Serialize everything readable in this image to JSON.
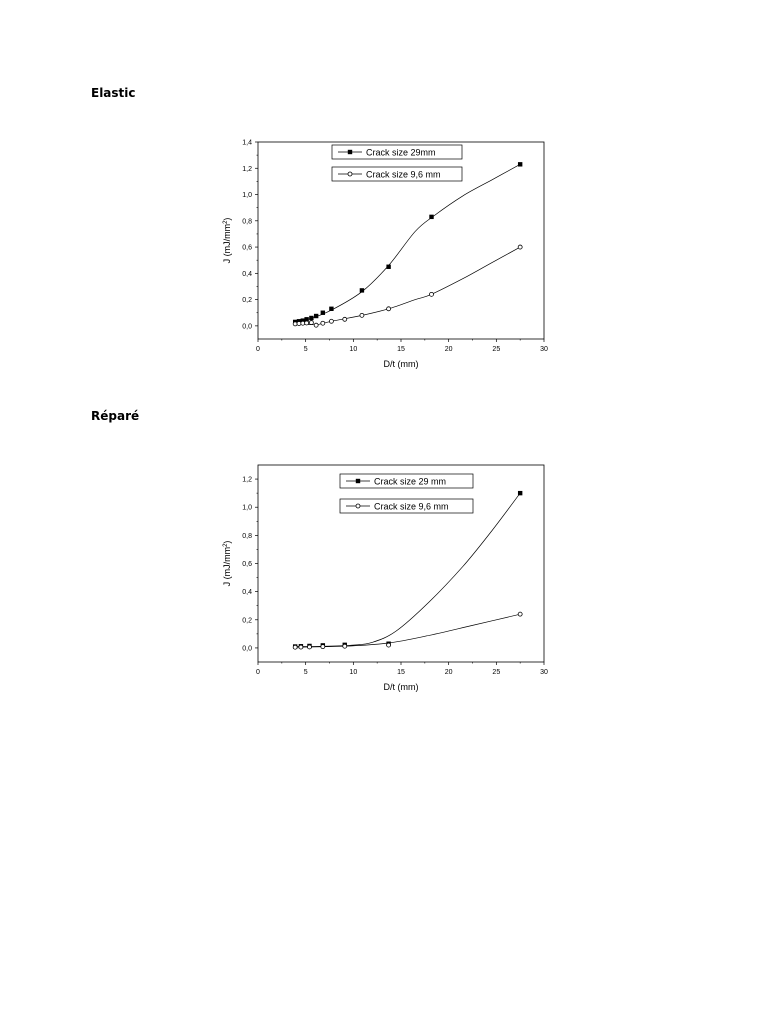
{
  "headings": [
    "Elastic",
    "Réparé"
  ],
  "chart_data": [
    {
      "type": "scatter",
      "title": "",
      "xlabel": "D/t (mm)",
      "ylabel_main": "J (mJ/mm",
      "ylabel_sup": "2",
      "ylabel_tail": ")",
      "xlim": [
        0,
        30
      ],
      "ylim": [
        -0.1,
        1.4
      ],
      "xticks": [
        0,
        5,
        10,
        15,
        20,
        25,
        30
      ],
      "yticks": [
        "0.0",
        "0.2",
        "0.4",
        "0.6",
        "0.8",
        "1.0",
        "1.2",
        "1.4"
      ],
      "ytick_labels": [
        "0,0",
        "0,2",
        "0,4",
        "0,6",
        "0,8",
        "1,0",
        "1,2",
        "1,4"
      ],
      "grid": false,
      "legend_position": "top-center",
      "series": [
        {
          "name": "Crack size 29mm",
          "marker": "filled-square",
          "points": [
            [
              3.9,
              0.03
            ],
            [
              4.3,
              0.035
            ],
            [
              4.7,
              0.04
            ],
            [
              5.1,
              0.05
            ],
            [
              5.6,
              0.06
            ],
            [
              6.1,
              0.075
            ],
            [
              6.8,
              0.1
            ],
            [
              7.7,
              0.13
            ],
            [
              10.9,
              0.27
            ],
            [
              13.7,
              0.45
            ],
            [
              18.2,
              0.83
            ],
            [
              27.5,
              1.23
            ]
          ],
          "curve": [
            [
              3.9,
              0.03
            ],
            [
              5.5,
              0.055
            ],
            [
              7.7,
              0.12
            ],
            [
              10.9,
              0.26
            ],
            [
              13.7,
              0.46
            ],
            [
              16.5,
              0.72
            ],
            [
              18.5,
              0.84
            ],
            [
              21.5,
              0.99
            ],
            [
              24.5,
              1.11
            ],
            [
              27.5,
              1.23
            ]
          ]
        },
        {
          "name": "Crack size 9,6 mm",
          "marker": "open-circle",
          "points": [
            [
              3.9,
              0.015
            ],
            [
              4.3,
              0.018
            ],
            [
              4.7,
              0.02
            ],
            [
              5.1,
              0.022
            ],
            [
              5.6,
              0.025
            ],
            [
              6.1,
              0.005
            ],
            [
              6.8,
              0.02
            ],
            [
              7.7,
              0.035
            ],
            [
              9.1,
              0.05
            ],
            [
              10.9,
              0.08
            ],
            [
              13.7,
              0.13
            ],
            [
              18.2,
              0.24
            ],
            [
              27.5,
              0.6
            ]
          ],
          "curve": [
            [
              3.9,
              0.015
            ],
            [
              6.1,
              0.01
            ],
            [
              7.7,
              0.035
            ],
            [
              10.9,
              0.08
            ],
            [
              13.7,
              0.13
            ],
            [
              16.5,
              0.2
            ],
            [
              18.2,
              0.24
            ],
            [
              21.5,
              0.36
            ],
            [
              24.5,
              0.48
            ],
            [
              27.5,
              0.6
            ]
          ]
        }
      ]
    },
    {
      "type": "scatter",
      "title": "",
      "xlabel": "D/t (mm)",
      "ylabel_main": "J (mJ/mm",
      "ylabel_sup": "2",
      "ylabel_tail": ")",
      "xlim": [
        0,
        30
      ],
      "ylim": [
        -0.1,
        1.3
      ],
      "xticks": [
        0,
        5,
        10,
        15,
        20,
        25,
        30
      ],
      "yticks": [
        "0.0",
        "0.2",
        "0.4",
        "0.6",
        "0.8",
        "1.0",
        "1.2"
      ],
      "ytick_labels": [
        "0,0",
        "0,2",
        "0,4",
        "0,6",
        "0,8",
        "1,0",
        "1,2"
      ],
      "grid": false,
      "legend_position": "top-right",
      "series": [
        {
          "name": "Crack size 29 mm",
          "marker": "filled-square",
          "points": [
            [
              3.9,
              0.01
            ],
            [
              4.5,
              0.012
            ],
            [
              5.4,
              0.014
            ],
            [
              6.8,
              0.018
            ],
            [
              9.1,
              0.022
            ],
            [
              13.7,
              0.03
            ],
            [
              27.5,
              1.1
            ]
          ],
          "curve": [
            [
              3.9,
              0.01
            ],
            [
              7.0,
              0.012
            ],
            [
              10.0,
              0.02
            ],
            [
              12.0,
              0.04
            ],
            [
              14.5,
              0.12
            ],
            [
              18.0,
              0.33
            ],
            [
              21.5,
              0.58
            ],
            [
              24.5,
              0.83
            ],
            [
              27.5,
              1.1
            ]
          ]
        },
        {
          "name": "Crack size 9,6 mm",
          "marker": "open-circle",
          "points": [
            [
              3.9,
              0.005
            ],
            [
              4.5,
              0.006
            ],
            [
              5.4,
              0.007
            ],
            [
              6.8,
              0.009
            ],
            [
              9.1,
              0.012
            ],
            [
              13.7,
              0.02
            ],
            [
              27.5,
              0.24
            ]
          ],
          "curve": [
            [
              3.9,
              0.005
            ],
            [
              9.1,
              0.012
            ],
            [
              13.7,
              0.035
            ],
            [
              18.0,
              0.09
            ],
            [
              22.5,
              0.16
            ],
            [
              27.5,
              0.24
            ]
          ]
        }
      ]
    }
  ]
}
